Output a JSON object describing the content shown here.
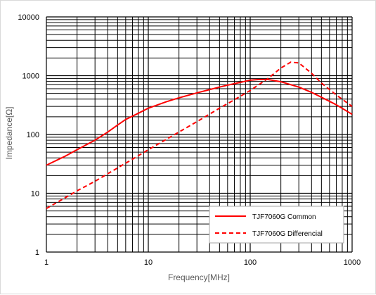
{
  "chart_data": {
    "type": "line",
    "title": "",
    "xlabel": "Frequency[MHz]",
    "ylabel": "Impedance[Ω]",
    "x_scale": "log",
    "y_scale": "log",
    "xlim": [
      1,
      1000
    ],
    "ylim": [
      1,
      10000
    ],
    "x_ticks": [
      "1",
      "10",
      "100",
      "1000"
    ],
    "y_ticks": [
      "1",
      "10",
      "100",
      "1000",
      "10000"
    ],
    "grid": true,
    "legend_position": "bottom-right",
    "series": [
      {
        "name": "TJF7060G Common",
        "color": "#ff0000",
        "dash": "solid",
        "x": [
          1,
          1.5,
          2,
          3,
          4,
          5,
          6,
          8,
          10,
          15,
          20,
          30,
          40,
          50,
          60,
          80,
          100,
          120,
          150,
          200,
          300,
          400,
          500,
          700,
          1000
        ],
        "y": [
          30,
          42,
          55,
          80,
          110,
          145,
          180,
          230,
          280,
          360,
          420,
          510,
          580,
          640,
          690,
          770,
          840,
          860,
          860,
          790,
          640,
          520,
          430,
          320,
          220
        ]
      },
      {
        "name": "TJF7060G Differencial",
        "color": "#ff0000",
        "dash": "dashed",
        "x": [
          1,
          2,
          3,
          5,
          7,
          10,
          20,
          30,
          50,
          70,
          100,
          150,
          200,
          250,
          300,
          400,
          500,
          700,
          1000
        ],
        "y": [
          5.5,
          11,
          16,
          27,
          38,
          55,
          110,
          165,
          280,
          390,
          560,
          900,
          1350,
          1700,
          1650,
          1100,
          750,
          470,
          300
        ]
      }
    ]
  }
}
